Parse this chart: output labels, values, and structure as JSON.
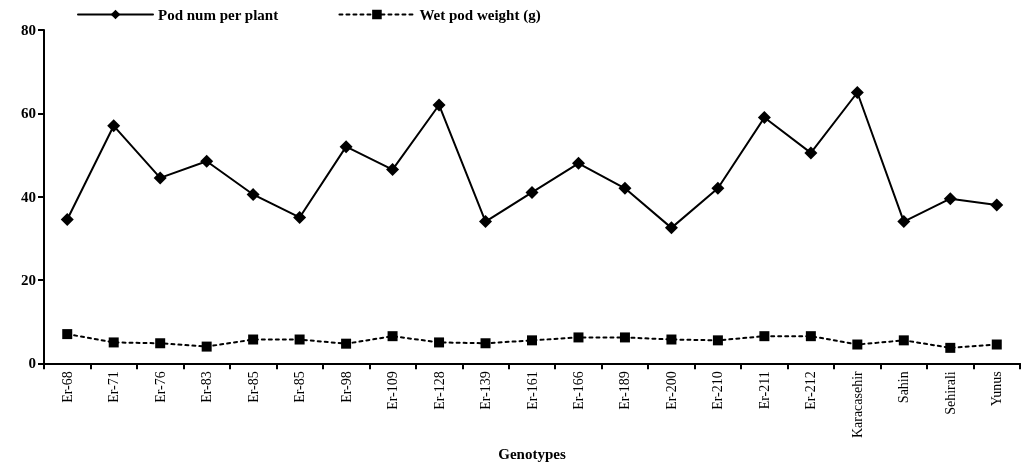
{
  "chart_data": {
    "type": "line",
    "xlabel": "Genotypes",
    "categories": [
      "Er-68",
      "Er-71",
      "Er-76",
      "Er-83",
      "Er-85",
      "Er-85",
      "Er-98",
      "Er-109",
      "Er-128",
      "Er-139",
      "Er-161",
      "Er-166",
      "Er-189",
      "Er-200",
      "Er-210",
      "Er-211",
      "Er-212",
      "Karacasehir",
      "Sahin",
      "Sehirali",
      "Yunus"
    ],
    "series": [
      {
        "name": "Pod num per plant",
        "color": "#000000",
        "marker": "diamond",
        "line_style": "solid",
        "values": [
          34.5,
          57,
          44.5,
          48.5,
          40.5,
          35,
          52,
          46.5,
          62,
          34,
          41,
          48,
          42,
          32.5,
          42,
          59,
          50.5,
          65,
          34,
          39.5,
          38
        ]
      },
      {
        "name": "Wet pod weight (g)",
        "color": "#000000",
        "marker": "square",
        "line_style": "dotted",
        "values": [
          7,
          5,
          4.8,
          4,
          5.7,
          5.7,
          4.7,
          6.5,
          5,
          4.8,
          5.5,
          6.2,
          6.2,
          5.7,
          5.5,
          6.5,
          6.5,
          4.5,
          5.5,
          3.7,
          4.5
        ]
      }
    ],
    "ylim": [
      0,
      80
    ],
    "yticks": [
      0,
      20,
      40,
      60,
      80
    ],
    "grid": false,
    "legend": "top left"
  }
}
